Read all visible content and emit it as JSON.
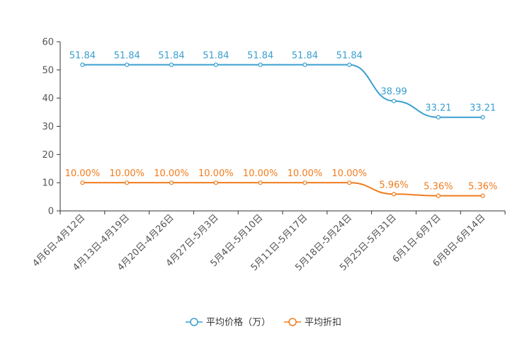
{
  "chart_data": {
    "type": "line",
    "title": "",
    "xlabel": "",
    "ylabel": "",
    "ylim": [
      0,
      60
    ],
    "yticks": [
      0,
      10,
      20,
      30,
      40,
      50,
      60
    ],
    "categories": [
      "4月6日-4月12日",
      "4月13日-4月19日",
      "4月20日-4月26日",
      "4月27日-5月3日",
      "5月4日-5月10日",
      "5月11日-5月17日",
      "5月18日-5月24日",
      "5月25日-5月31日",
      "6月1日-6月7日",
      "6月8日-6月14日"
    ],
    "series": [
      {
        "name": "平均价格（万）",
        "color": "#3a9fcf",
        "values": [
          51.84,
          51.84,
          51.84,
          51.84,
          51.84,
          51.84,
          51.84,
          38.99,
          33.21,
          33.21
        ],
        "labels": [
          "51.84",
          "51.84",
          "51.84",
          "51.84",
          "51.84",
          "51.84",
          "51.84",
          "38.99",
          "33.21",
          "33.21"
        ]
      },
      {
        "name": "平均折扣",
        "color": "#f07c1e",
        "values": [
          10.0,
          10.0,
          10.0,
          10.0,
          10.0,
          10.0,
          10.0,
          5.96,
          5.36,
          5.36
        ],
        "labels": [
          "10.00%",
          "10.00%",
          "10.00%",
          "10.00%",
          "10.00%",
          "10.00%",
          "10.00%",
          "5.96%",
          "5.36%",
          "5.36%"
        ]
      }
    ],
    "legend_position": "bottom-center",
    "grid": false
  }
}
